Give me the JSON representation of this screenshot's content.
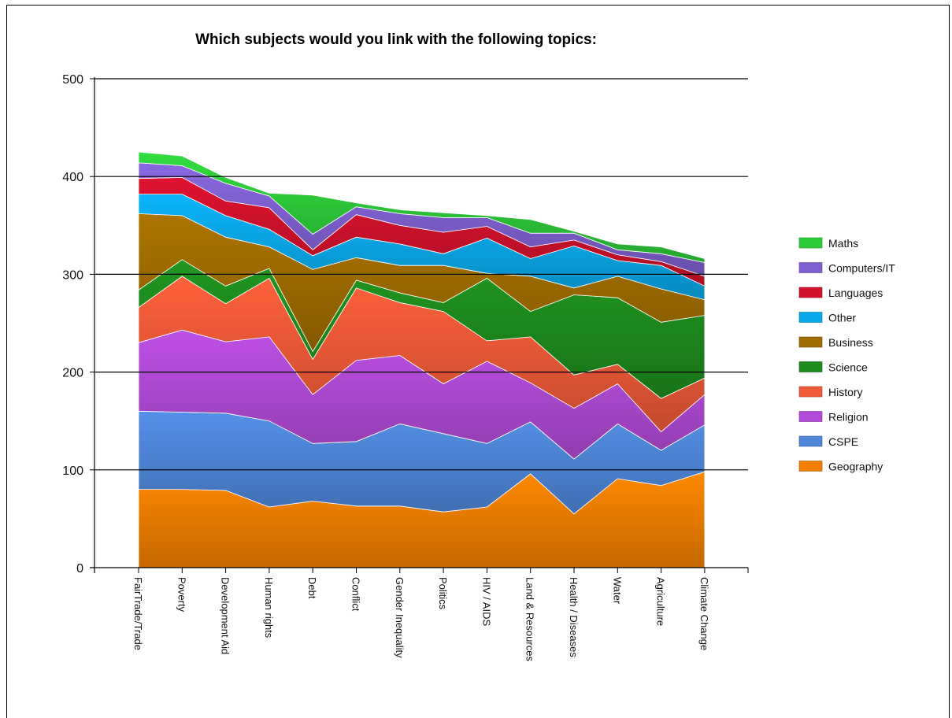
{
  "chart_data": {
    "type": "area",
    "stacked": true,
    "title": "Which subjects would you link with the following topics:",
    "ylim": [
      0,
      500
    ],
    "yticks": [
      "0",
      "100",
      "200",
      "300",
      "400",
      "500"
    ],
    "grid": true,
    "legend_position": "right",
    "categories": [
      "FairTrade/Trade",
      "Poverty",
      "Development Aid",
      "Human rights",
      "Debt",
      "Conflict",
      "Gender Inequality",
      "Politics",
      "HIV / AIDS",
      "Land & Resources",
      "Health / Diseases",
      "Water",
      "Agriculture",
      "Climate Change"
    ],
    "series": [
      {
        "name": "Geography",
        "color": "#f07f00",
        "values": [
          80,
          80,
          79,
          62,
          68,
          63,
          63,
          57,
          62,
          96,
          55,
          91,
          84,
          98
        ]
      },
      {
        "name": "CSPE",
        "color": "#4f86d8",
        "values": [
          80,
          79,
          79,
          88,
          59,
          66,
          84,
          80,
          65,
          53,
          56,
          56,
          36,
          48
        ]
      },
      {
        "name": "Religion",
        "color": "#b14ad6",
        "values": [
          70,
          84,
          73,
          86,
          50,
          83,
          70,
          51,
          84,
          40,
          52,
          41,
          19,
          31
        ]
      },
      {
        "name": "History",
        "color": "#ef5a38",
        "values": [
          36,
          55,
          39,
          60,
          36,
          74,
          54,
          74,
          21,
          47,
          34,
          20,
          34,
          17
        ]
      },
      {
        "name": "Science",
        "color": "#1e8c1e",
        "values": [
          18,
          17,
          18,
          10,
          8,
          8,
          10,
          9,
          64,
          26,
          82,
          68,
          78,
          64
        ]
      },
      {
        "name": "Business",
        "color": "#a06c00",
        "values": [
          78,
          45,
          50,
          22,
          84,
          23,
          28,
          38,
          5,
          36,
          7,
          22,
          34,
          16
        ]
      },
      {
        "name": "Other",
        "color": "#0aa8e8",
        "values": [
          20,
          22,
          22,
          18,
          14,
          21,
          22,
          12,
          36,
          18,
          43,
          16,
          24,
          14
        ]
      },
      {
        "name": "Languages",
        "color": "#d0122c",
        "values": [
          16,
          17,
          15,
          22,
          6,
          23,
          19,
          22,
          12,
          12,
          6,
          6,
          4,
          10
        ]
      },
      {
        "name": "Computers/IT",
        "color": "#8060d0",
        "values": [
          16,
          12,
          18,
          12,
          16,
          8,
          12,
          15,
          9,
          14,
          7,
          5,
          8,
          14
        ]
      },
      {
        "name": "Maths",
        "color": "#2ecc3a",
        "values": [
          11,
          10,
          6,
          3,
          40,
          4,
          4,
          5,
          2,
          14,
          2,
          6,
          7,
          4
        ]
      }
    ]
  }
}
